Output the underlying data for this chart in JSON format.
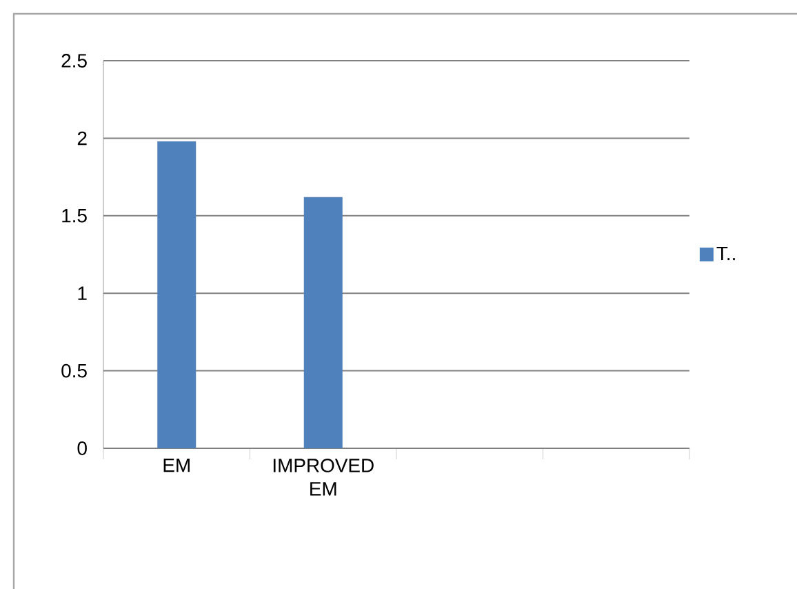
{
  "chart_data": {
    "type": "bar",
    "categories": [
      "EM",
      "IMPROVED EM",
      null,
      null
    ],
    "series": [
      {
        "name": "T..",
        "color": "#4f81bd",
        "values": [
          1.98,
          1.62,
          null,
          null
        ]
      }
    ],
    "ylim": [
      0,
      2.5
    ],
    "yticks": [
      0,
      0.5,
      1,
      1.5,
      2,
      2.5
    ],
    "grid": "y",
    "legend": "right"
  }
}
